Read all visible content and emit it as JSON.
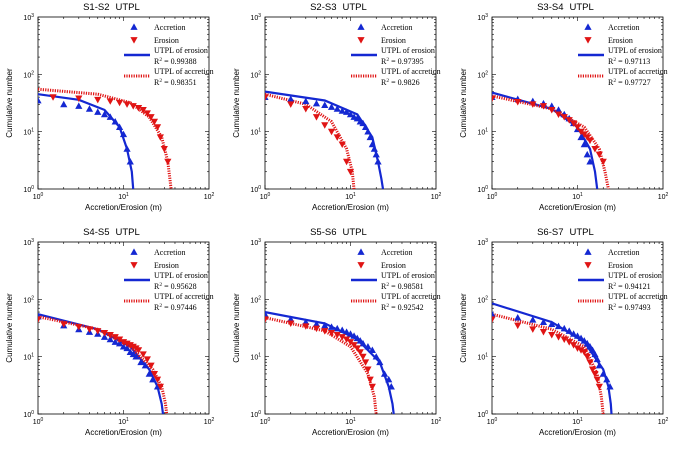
{
  "figure": {
    "ylabel": "Cumulative number",
    "xlabel": "Accretion/Erosion (m)",
    "colors": {
      "accretion": "#1428d2",
      "erosion": "#e01414"
    }
  },
  "chart_data": [
    {
      "type": "scatter",
      "title": "S1-S2",
      "title_suffix": "UTPL",
      "xscale": "log",
      "yscale": "log",
      "xlim": [
        1,
        100
      ],
      "ylim": [
        1,
        1000
      ],
      "xticks": [
        "10^0",
        "10^1",
        "10^2"
      ],
      "yticks": [
        "10^0",
        "10^1",
        "10^2",
        "10^3"
      ],
      "series": [
        {
          "name": "Accretion",
          "marker": "triangle-up",
          "color": "#1428d2",
          "x": [
            1.0,
            2.0,
            3.0,
            4.0,
            5.0,
            6.0,
            7.0,
            8.0,
            9.0,
            10.0,
            11.0,
            12.0
          ],
          "y": [
            35,
            30,
            28,
            25,
            22,
            20,
            18,
            15,
            12,
            9,
            5,
            3
          ]
        },
        {
          "name": "Erosion",
          "marker": "triangle-down",
          "color": "#e01414",
          "x": [
            1.5,
            3.0,
            5.0,
            7.0,
            9.0,
            11.0,
            13.0,
            15.0,
            17.0,
            19.0,
            21.0,
            23.0,
            25.0,
            27.0,
            30.0,
            33.0
          ],
          "y": [
            40,
            38,
            36,
            34,
            32,
            30,
            28,
            26,
            24,
            21,
            18,
            15,
            12,
            8,
            5,
            3
          ]
        },
        {
          "name": "UTPL of erosion",
          "line": "solid",
          "color": "#1428d2",
          "r2": "0.99388",
          "x": [
            1,
            3,
            6,
            9,
            11,
            12.5,
            13
          ],
          "y": [
            45,
            36,
            24,
            12,
            5,
            2,
            1
          ]
        },
        {
          "name": "UTPL of accretion",
          "line": "dotted",
          "color": "#e01414",
          "r2": "0.98351",
          "x": [
            1,
            5,
            12,
            20,
            28,
            33,
            36
          ],
          "y": [
            55,
            45,
            32,
            18,
            8,
            3,
            1
          ]
        }
      ]
    },
    {
      "type": "scatter",
      "title": "S2-S3",
      "title_suffix": "UTPL",
      "xscale": "log",
      "yscale": "log",
      "xlim": [
        1,
        100
      ],
      "ylim": [
        1,
        1000
      ],
      "xticks": [
        "10^0",
        "10^1",
        "10^2"
      ],
      "yticks": [
        "10^0",
        "10^1",
        "10^2",
        "10^3"
      ],
      "series": [
        {
          "name": "Accretion",
          "marker": "triangle-up",
          "color": "#1428d2",
          "x": [
            1.0,
            2.0,
            3.0,
            4.0,
            5.0,
            6.0,
            7.0,
            8.0,
            9.0,
            10.0,
            11.0,
            12.0,
            13.0,
            14.0,
            15.0,
            16.0,
            17.0,
            18.0,
            19.0,
            20.0,
            21.0
          ],
          "y": [
            40,
            37,
            34,
            31,
            29,
            27,
            25,
            23,
            22,
            20,
            18,
            17,
            15,
            14,
            12,
            10,
            8,
            6,
            5,
            4,
            3
          ]
        },
        {
          "name": "Erosion",
          "marker": "triangle-down",
          "color": "#e01414",
          "x": [
            1.0,
            2.0,
            3.0,
            4.0,
            5.0,
            6.0,
            7.0,
            8.0,
            9.0,
            10.0
          ],
          "y": [
            40,
            30,
            25,
            18,
            13,
            10,
            8,
            6,
            3,
            2
          ]
        },
        {
          "name": "UTPL of erosion",
          "line": "solid",
          "color": "#1428d2",
          "r2": "0.97395",
          "x": [
            1,
            5,
            12,
            18,
            21,
            23,
            24
          ],
          "y": [
            50,
            35,
            20,
            8,
            3,
            1.5,
            1
          ]
        },
        {
          "name": "UTPL of accretion",
          "line": "dotted",
          "color": "#e01414",
          "r2": "0.9826",
          "x": [
            1,
            3,
            6,
            9,
            10.5,
            11
          ],
          "y": [
            45,
            30,
            15,
            5,
            2,
            1
          ]
        }
      ]
    },
    {
      "type": "scatter",
      "title": "S3-S4",
      "title_suffix": "UTPL",
      "xscale": "log",
      "yscale": "log",
      "xlim": [
        1,
        100
      ],
      "ylim": [
        1,
        1000
      ],
      "xticks": [
        "10^0",
        "10^1",
        "10^2"
      ],
      "yticks": [
        "10^0",
        "10^1",
        "10^2",
        "10^3"
      ],
      "series": [
        {
          "name": "Accretion",
          "marker": "triangle-up",
          "color": "#1428d2",
          "x": [
            1.0,
            2.0,
            3.0,
            4.0,
            5.0,
            6.0,
            7.0,
            8.0,
            9.0,
            10.0,
            11.0,
            12.0,
            13.0,
            14.0
          ],
          "y": [
            40,
            37,
            34,
            31,
            28,
            24,
            20,
            17,
            14,
            11,
            8,
            6,
            4,
            3
          ]
        },
        {
          "name": "Erosion",
          "marker": "triangle-down",
          "color": "#e01414",
          "x": [
            1.0,
            2.0,
            3.0,
            4.0,
            5.0,
            6.0,
            7.0,
            8.0,
            9.0,
            10.0,
            11.0,
            12.0,
            13.0,
            14.0,
            16.0,
            18.0,
            20.0
          ],
          "y": [
            38,
            33,
            30,
            28,
            24,
            20,
            18,
            16,
            14,
            12,
            10,
            9,
            8,
            7,
            5,
            4,
            3
          ]
        },
        {
          "name": "UTPL of erosion",
          "line": "solid",
          "color": "#1428d2",
          "r2": "0.97113",
          "x": [
            1,
            5,
            10,
            14,
            16,
            17
          ],
          "y": [
            48,
            25,
            12,
            5,
            2,
            1
          ]
        },
        {
          "name": "UTPL of accretion",
          "line": "dotted",
          "color": "#e01414",
          "r2": "0.97727",
          "x": [
            1,
            5,
            12,
            18,
            21,
            23
          ],
          "y": [
            42,
            25,
            12,
            5,
            2,
            1
          ]
        }
      ]
    },
    {
      "type": "scatter",
      "title": "S4-S5",
      "title_suffix": "UTPL",
      "xscale": "log",
      "yscale": "log",
      "xlim": [
        1,
        100
      ],
      "ylim": [
        1,
        1000
      ],
      "xticks": [
        "10^0",
        "10^1",
        "10^2"
      ],
      "yticks": [
        "10^0",
        "10^1",
        "10^2",
        "10^3"
      ],
      "series": [
        {
          "name": "Accretion",
          "marker": "triangle-up",
          "color": "#1428d2",
          "x": [
            1.0,
            2.0,
            3.0,
            4.0,
            5.0,
            6.0,
            7.0,
            8.0,
            9.0,
            10.0,
            11.0,
            12.0,
            13.0,
            14.0,
            16.0,
            18.0,
            20.0,
            22.0,
            25.0
          ],
          "y": [
            50,
            35,
            30,
            27,
            25,
            22,
            20,
            18,
            17,
            15,
            14,
            12,
            11,
            10,
            8,
            7,
            5,
            4,
            3
          ]
        },
        {
          "name": "Erosion",
          "marker": "triangle-down",
          "color": "#e01414",
          "x": [
            1.0,
            2.0,
            3.0,
            4.0,
            5.0,
            6.0,
            7.0,
            8.0,
            9.0,
            10.0,
            11.0,
            12.0,
            13.0,
            14.0,
            15.0,
            17.0,
            19.0,
            21.0,
            23.0,
            25.0,
            27.0
          ],
          "y": [
            45,
            37,
            33,
            30,
            28,
            26,
            24,
            22,
            20,
            18,
            17,
            16,
            15,
            14,
            13,
            11,
            9,
            7,
            5,
            4,
            3
          ]
        },
        {
          "name": "UTPL of erosion",
          "line": "solid",
          "color": "#1428d2",
          "r2": "0.95628",
          "x": [
            1,
            5,
            12,
            20,
            25,
            28,
            29
          ],
          "y": [
            55,
            30,
            15,
            6,
            3,
            1.5,
            1
          ]
        },
        {
          "name": "UTPL of accretion",
          "line": "dotted",
          "color": "#e01414",
          "r2": "0.97446",
          "x": [
            1,
            5,
            12,
            22,
            28,
            31,
            32
          ],
          "y": [
            50,
            30,
            15,
            6,
            3,
            1.5,
            1
          ]
        }
      ]
    },
    {
      "type": "scatter",
      "title": "S5-S6",
      "title_suffix": "UTPL",
      "xscale": "log",
      "yscale": "log",
      "xlim": [
        1,
        100
      ],
      "ylim": [
        1,
        1000
      ],
      "xticks": [
        "10^0",
        "10^1",
        "10^2"
      ],
      "yticks": [
        "10^0",
        "10^1",
        "10^2",
        "10^3"
      ],
      "series": [
        {
          "name": "Accretion",
          "marker": "triangle-up",
          "color": "#1428d2",
          "x": [
            1.0,
            2.0,
            3.0,
            4.0,
            5.0,
            6.0,
            7.0,
            8.0,
            9.0,
            10.0,
            11.0,
            12.0,
            13.0,
            14.0,
            16.0,
            18.0,
            20.0,
            22.0,
            25.0,
            28.0,
            30.0
          ],
          "y": [
            55,
            45,
            40,
            37,
            35,
            33,
            31,
            29,
            27,
            25,
            23,
            21,
            19,
            17,
            15,
            13,
            10,
            8,
            5,
            4,
            3
          ]
        },
        {
          "name": "Erosion",
          "marker": "triangle-down",
          "color": "#e01414",
          "x": [
            1.0,
            2.0,
            3.0,
            4.0,
            5.0,
            6.0,
            7.0,
            8.0,
            9.0,
            10.0,
            11.0,
            12.0,
            13.0,
            14.0,
            15.0,
            16.0,
            17.0,
            18.0
          ],
          "y": [
            45,
            38,
            34,
            31,
            28,
            26,
            24,
            22,
            20,
            18,
            16,
            14,
            12,
            10,
            8,
            6,
            4,
            3
          ]
        },
        {
          "name": "UTPL of erosion",
          "line": "solid",
          "color": "#1428d2",
          "r2": "0.98581",
          "x": [
            1,
            5,
            12,
            22,
            28,
            31,
            32
          ],
          "y": [
            60,
            38,
            20,
            8,
            3,
            1.5,
            1
          ]
        },
        {
          "name": "UTPL of accretion",
          "line": "dotted",
          "color": "#e01414",
          "r2": "0.92542",
          "x": [
            1,
            5,
            10,
            16,
            19,
            20
          ],
          "y": [
            48,
            28,
            15,
            5,
            2,
            1
          ]
        }
      ]
    },
    {
      "type": "scatter",
      "title": "S6-S7",
      "title_suffix": "UTPL",
      "xscale": "log",
      "yscale": "log",
      "xlim": [
        1,
        100
      ],
      "ylim": [
        1,
        1000
      ],
      "xticks": [
        "10^0",
        "10^1",
        "10^2"
      ],
      "yticks": [
        "10^0",
        "10^1",
        "10^2",
        "10^3"
      ],
      "series": [
        {
          "name": "Accretion",
          "marker": "triangle-up",
          "color": "#1428d2",
          "x": [
            1.0,
            2.0,
            3.0,
            4.0,
            5.0,
            6.0,
            7.0,
            8.0,
            9.0,
            10.0,
            11.0,
            12.0,
            13.0,
            14.0,
            15.0,
            16.0,
            17.0,
            18.0,
            20.0,
            22.0,
            24.0
          ],
          "y": [
            55,
            48,
            44,
            40,
            37,
            34,
            31,
            28,
            25,
            23,
            21,
            19,
            17,
            15,
            13,
            11,
            9,
            7,
            5,
            4,
            3
          ]
        },
        {
          "name": "Erosion",
          "marker": "triangle-down",
          "color": "#e01414",
          "x": [
            1.0,
            2.0,
            3.0,
            4.0,
            5.0,
            6.0,
            7.0,
            8.0,
            9.0,
            10.0,
            11.0,
            12.0,
            13.0,
            14.0,
            15.0,
            16.0,
            17.0,
            18.0
          ],
          "y": [
            45,
            35,
            30,
            27,
            24,
            22,
            20,
            18,
            16,
            14,
            13,
            12,
            10,
            8,
            6,
            5,
            4,
            3
          ]
        },
        {
          "name": "UTPL of erosion",
          "line": "solid",
          "color": "#1428d2",
          "r2": "0.94121",
          "x": [
            1,
            5,
            12,
            20,
            23,
            24.5,
            25
          ],
          "y": [
            85,
            40,
            18,
            6,
            3,
            1.5,
            1
          ]
        },
        {
          "name": "UTPL of accretion",
          "line": "dotted",
          "color": "#e01414",
          "r2": "0.97493",
          "x": [
            1,
            5,
            12,
            17,
            19,
            20
          ],
          "y": [
            55,
            30,
            15,
            5,
            2,
            1
          ]
        }
      ]
    }
  ]
}
